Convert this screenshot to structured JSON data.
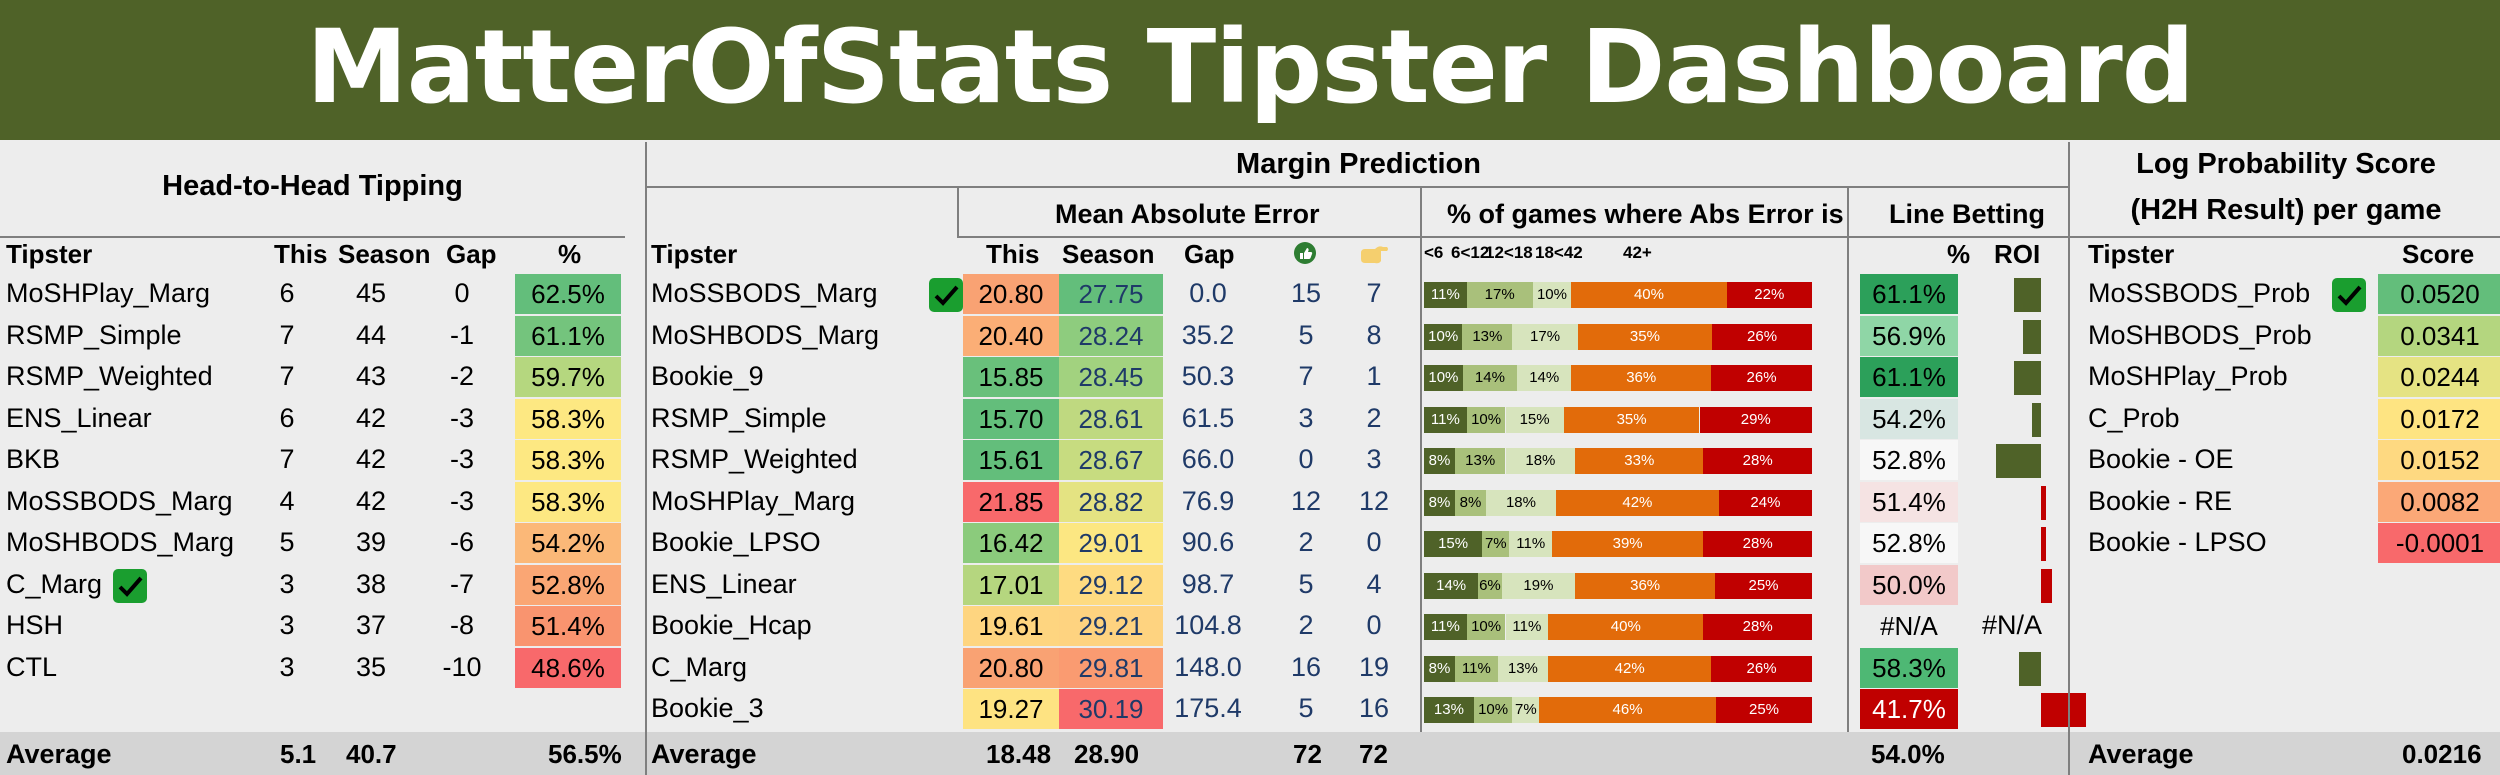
{
  "title": "MatterOfStats Tipster Dashboard",
  "h2h": {
    "header": "Head-to-Head Tipping",
    "cols": [
      "Tipster",
      "This",
      "Season",
      "Gap",
      "%"
    ],
    "rows": [
      {
        "name": "MoSHPlay_Marg",
        "this": "6",
        "season": "45",
        "gap": "0",
        "pct": "62.5%",
        "color": "#63be7b",
        "check": false
      },
      {
        "name": "RSMP_Simple",
        "this": "7",
        "season": "44",
        "gap": "-1",
        "pct": "61.1%",
        "color": "#74c47d",
        "check": false
      },
      {
        "name": "RSMP_Weighted",
        "this": "7",
        "season": "43",
        "gap": "-2",
        "pct": "59.7%",
        "color": "#b5d77f",
        "check": false
      },
      {
        "name": "ENS_Linear",
        "this": "6",
        "season": "42",
        "gap": "-3",
        "pct": "58.3%",
        "color": "#fde882",
        "check": false
      },
      {
        "name": "BKB",
        "this": "7",
        "season": "42",
        "gap": "-3",
        "pct": "58.3%",
        "color": "#fde882",
        "check": false
      },
      {
        "name": "MoSSBODS_Marg",
        "this": "4",
        "season": "42",
        "gap": "-3",
        "pct": "58.3%",
        "color": "#fde882",
        "check": false
      },
      {
        "name": "MoSHBODS_Marg",
        "this": "5",
        "season": "39",
        "gap": "-6",
        "pct": "54.2%",
        "color": "#fbb878",
        "check": false
      },
      {
        "name": "C_Marg",
        "this": "3",
        "season": "38",
        "gap": "-7",
        "pct": "52.8%",
        "color": "#faa674",
        "check": true
      },
      {
        "name": "HSH",
        "this": "3",
        "season": "37",
        "gap": "-8",
        "pct": "51.4%",
        "color": "#f9946f",
        "check": false
      },
      {
        "name": "CTL",
        "this": "3",
        "season": "35",
        "gap": "-10",
        "pct": "48.6%",
        "color": "#f8696b",
        "check": false
      }
    ],
    "avg": {
      "label": "Average",
      "this": "5.1",
      "season": "40.7",
      "pct": "56.5%"
    }
  },
  "margin": {
    "header": "Margin Prediction",
    "mae_header": "Mean Absolute Error",
    "err_header": "% of games where Abs Error is",
    "line_header": "Line Betting",
    "cols": [
      "Tipster",
      "This",
      "Season",
      "Gap",
      "%",
      "ROI"
    ],
    "err_cols": [
      "<6",
      "6<12",
      "12<18",
      "18<42",
      "42+"
    ],
    "thumb_icon": "thumbs-up-icon",
    "hand_icon": "pointing-hand-icon",
    "rows": [
      {
        "name": "MoSSBODS_Marg",
        "check": true,
        "this": "20.80",
        "this_c": "#f9a273",
        "season": "27.75",
        "season_c": "#63be7b",
        "gap": "0.0",
        "up": "15",
        "down": "7",
        "err": [
          11,
          17,
          10,
          40,
          22
        ],
        "line": "61.1%",
        "line_c": "#2ca05a",
        "roi": -0.06
      },
      {
        "name": "MoSHBODS_Marg",
        "check": false,
        "this": "20.40",
        "this_c": "#fbae76",
        "season": "28.24",
        "season_c": "#8ecc7e",
        "gap": "35.2",
        "up": "5",
        "down": "8",
        "err": [
          10,
          13,
          17,
          35,
          26
        ],
        "line": "56.9%",
        "line_c": "#8fd6a6",
        "roi": -0.04
      },
      {
        "name": "Bookie_9",
        "check": false,
        "this": "15.85",
        "this_c": "#69c07b",
        "season": "28.45",
        "season_c": "#a2d27f",
        "gap": "50.3",
        "up": "7",
        "down": "1",
        "err": [
          10,
          14,
          14,
          36,
          26
        ],
        "line": "61.1%",
        "line_c": "#2ca05a",
        "roi": -0.06
      },
      {
        "name": "RSMP_Simple",
        "check": false,
        "this": "15.70",
        "this_c": "#63be7b",
        "season": "28.61",
        "season_c": "#bfd980",
        "gap": "61.5",
        "up": "3",
        "down": "2",
        "err": [
          11,
          10,
          15,
          35,
          29
        ],
        "line": "54.2%",
        "line_c": "#d8e6e2",
        "roi": -0.02
      },
      {
        "name": "RSMP_Weighted",
        "check": false,
        "this": "15.61",
        "this_c": "#63be7b",
        "season": "28.67",
        "season_c": "#c7dc80",
        "gap": "66.0",
        "up": "0",
        "down": "3",
        "err": [
          8,
          13,
          18,
          33,
          28
        ],
        "line": "52.8%",
        "line_c": "#f7f7f7",
        "roi": -0.1
      },
      {
        "name": "MoSHPlay_Marg",
        "check": false,
        "this": "21.85",
        "this_c": "#f8696b",
        "season": "28.82",
        "season_c": "#e4e382",
        "gap": "76.9",
        "up": "12",
        "down": "12",
        "err": [
          8,
          8,
          18,
          42,
          24
        ],
        "line": "51.4%",
        "line_c": "#f5e3e3",
        "roi": 0.012
      },
      {
        "name": "Bookie_LPSO",
        "check": false,
        "this": "16.42",
        "this_c": "#8bcb7c",
        "season": "29.01",
        "season_c": "#fce782",
        "gap": "90.6",
        "up": "2",
        "down": "0",
        "err": [
          15,
          7,
          11,
          39,
          28
        ],
        "line": "52.8%",
        "line_c": "#f7f7f7",
        "roi": 0.01
      },
      {
        "name": "ENS_Linear",
        "check": false,
        "this": "17.01",
        "this_c": "#b5d67f",
        "season": "29.12",
        "season_c": "#fedb81",
        "gap": "98.7",
        "up": "5",
        "down": "4",
        "err": [
          14,
          6,
          19,
          36,
          25
        ],
        "line": "50.0%",
        "line_c": "#f2c9c9",
        "roi": 0.025
      },
      {
        "name": "Bookie_Hcap",
        "check": false,
        "this": "19.61",
        "this_c": "#fed580",
        "season": "29.21",
        "season_c": "#fed380",
        "gap": "104.8",
        "up": "2",
        "down": "0",
        "err": [
          11,
          10,
          11,
          40,
          28
        ],
        "line": "#N/A",
        "line_c": "",
        "roi": null,
        "roi_text": "#N/A"
      },
      {
        "name": "C_Marg",
        "check": false,
        "this": "20.80",
        "this_c": "#f9a273",
        "season": "29.81",
        "season_c": "#fa9b71",
        "gap": "148.0",
        "up": "16",
        "down": "19",
        "err": [
          8,
          11,
          13,
          42,
          26
        ],
        "line": "58.3%",
        "line_c": "#4eb874",
        "roi": -0.05
      },
      {
        "name": "Bookie_3",
        "check": false,
        "this": "19.27",
        "this_c": "#fee382",
        "season": "30.19",
        "season_c": "#f8696b",
        "gap": "175.4",
        "up": "5",
        "down": "16",
        "err": [
          13,
          10,
          7,
          46,
          25
        ],
        "line": "41.7%",
        "line_c": "#c00000",
        "roi": 0.1
      }
    ],
    "avg": {
      "label": "Average",
      "this": "18.48",
      "season": "28.90",
      "up": "72",
      "down": "72",
      "line": "54.0%"
    }
  },
  "lps": {
    "header1": "Log Probability Score",
    "header2": "(H2H Result) per game",
    "cols": [
      "Tipster",
      "Score"
    ],
    "rows": [
      {
        "name": "MoSSBODS_Prob",
        "score": "0.0520",
        "color": "#63be7b",
        "check": true
      },
      {
        "name": "MoSHBODS_Prob",
        "score": "0.0341",
        "color": "#b4d67f",
        "check": false
      },
      {
        "name": "MoSHPlay_Prob",
        "score": "0.0244",
        "color": "#e5e383",
        "check": false
      },
      {
        "name": "C_Prob",
        "score": "0.0172",
        "color": "#fee482",
        "check": false
      },
      {
        "name": "Bookie - OE",
        "score": "0.0152",
        "color": "#fed981",
        "check": false
      },
      {
        "name": "Bookie - RE",
        "score": "0.0082",
        "color": "#fba877",
        "check": false
      },
      {
        "name": "Bookie - LPSO",
        "score": "-0.0001",
        "color": "#f8696b",
        "check": false
      }
    ],
    "avg": {
      "label": "Average",
      "score": "0.0216"
    }
  }
}
